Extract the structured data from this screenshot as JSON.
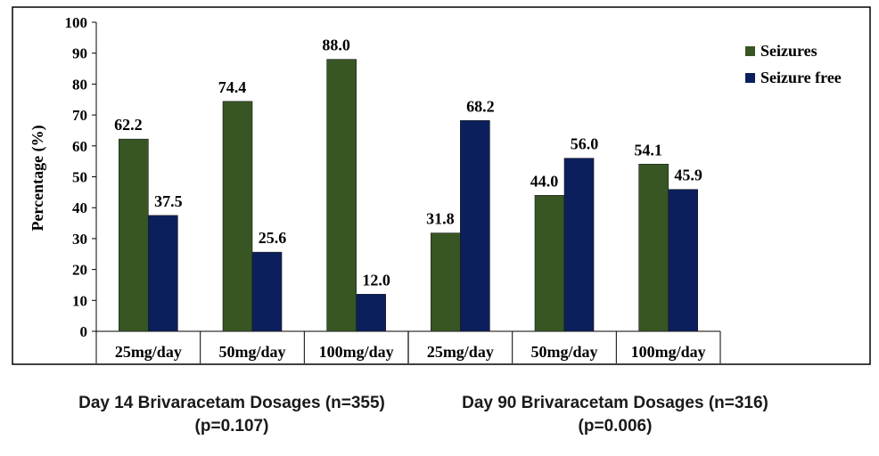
{
  "chart_data": {
    "type": "bar",
    "ylabel": "Percentage (%)",
    "ylim": [
      0,
      100
    ],
    "yticks": [
      0,
      10,
      20,
      30,
      40,
      50,
      60,
      70,
      80,
      90,
      100
    ],
    "categories": [
      "25mg/day",
      "50mg/day",
      "100mg/day",
      "25mg/day",
      "50mg/day",
      "100mg/day"
    ],
    "series": [
      {
        "name": "Seizures",
        "color": "#375623",
        "values": [
          62.2,
          74.4,
          88.0,
          31.8,
          44.0,
          54.1
        ],
        "labels": [
          "62.2",
          "74.4",
          "88.0",
          "31.8",
          "44.0",
          "54.1"
        ]
      },
      {
        "name": "Seizure free",
        "color": "#0b1f5c",
        "values": [
          37.5,
          25.6,
          12.0,
          68.2,
          56.0,
          45.9
        ],
        "labels": [
          "37.5",
          "25.6",
          "12.0",
          "68.2",
          "56.0",
          "45.9"
        ]
      }
    ],
    "legend_position": "right",
    "groups": [
      {
        "title": "Day 14 Brivaracetam Dosages (n=355)",
        "subtitle": "(p=0.107)"
      },
      {
        "title": "Day 90 Brivaracetam Dosages (n=316)",
        "subtitle": "(p=0.006)"
      }
    ]
  }
}
